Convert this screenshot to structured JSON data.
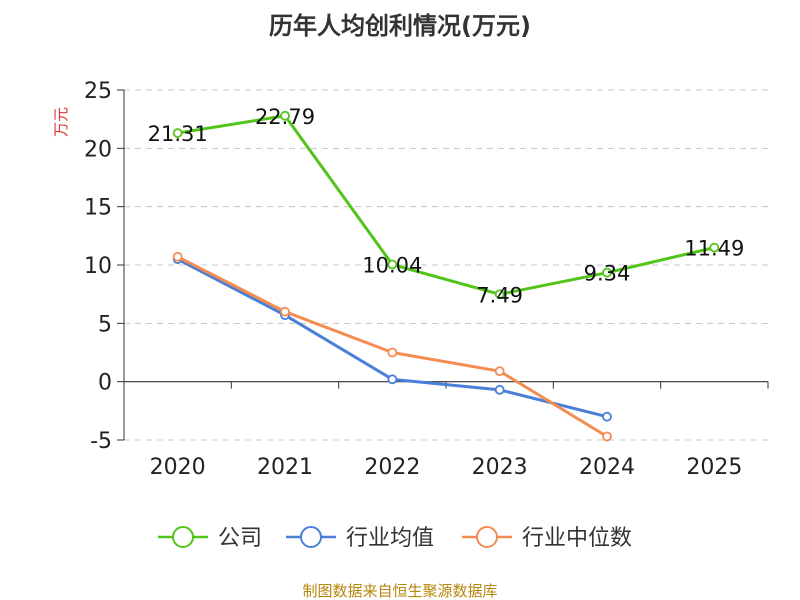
{
  "chart_data": {
    "type": "line",
    "title": "历年人均创利情况(万元)",
    "ylabel": "万元",
    "categories": [
      "2020",
      "2021",
      "2022",
      "2023",
      "2024",
      "2025"
    ],
    "ylim": [
      -5,
      25
    ],
    "yticks": [
      -5,
      0,
      5,
      10,
      15,
      20,
      25
    ],
    "grid": true,
    "legend_position": "bottom",
    "series": [
      {
        "name": "公司",
        "color": "#52c41a",
        "values": [
          21.31,
          22.79,
          10.04,
          7.49,
          9.34,
          11.49
        ],
        "labels": [
          "21.31",
          "22.79",
          "10.04",
          "7.49",
          "9.34",
          "11.49"
        ]
      },
      {
        "name": "行业均值",
        "color": "#4a7fd9",
        "values": [
          10.5,
          5.7,
          0.2,
          -0.7,
          -3.0,
          null
        ]
      },
      {
        "name": "行业中位数",
        "color": "#f58c52",
        "values": [
          10.7,
          6.0,
          2.5,
          0.9,
          -4.7,
          null
        ]
      }
    ]
  },
  "source_text": "制图数据来自恒生聚源数据库"
}
